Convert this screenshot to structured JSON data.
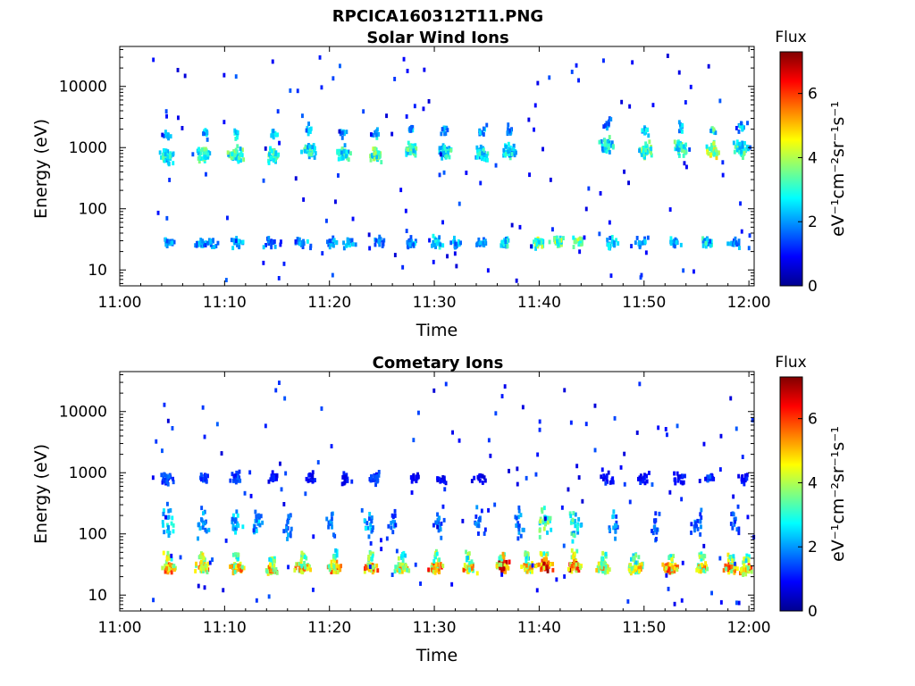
{
  "figure": {
    "filename": "RPCICA160312T11.PNG",
    "colors": {
      "background": "#ffffff",
      "axis": "#000000"
    }
  },
  "chart_data": [
    {
      "type": "heatmap",
      "title": "Solar Wind Ions",
      "xlabel": "Time",
      "ylabel": "Energy (eV)",
      "xticks": [
        "11:00",
        "11:10",
        "11:20",
        "11:30",
        "11:40",
        "11:50",
        "12:00"
      ],
      "xlim_minutes": [
        0,
        60.5
      ],
      "yscale": "log",
      "ylim": [
        5.5,
        45000
      ],
      "yticks": [
        10,
        100,
        1000,
        10000
      ],
      "ytick_labels": [
        "10",
        "100",
        "1000",
        "10000"
      ],
      "colorbar": {
        "title": "Flux",
        "unit": "eV⁻¹cm⁻²sr⁻¹s⁻¹",
        "range": [
          0,
          7.3
        ],
        "ticks": [
          0,
          2,
          4,
          6
        ],
        "colormap": "jet"
      },
      "bursts": [
        {
          "t": 4.4,
          "e": 700,
          "v": 3.2
        },
        {
          "t": 8.0,
          "e": 750,
          "v": 3.6
        },
        {
          "t": 11.0,
          "e": 780,
          "v": 3.8
        },
        {
          "t": 14.6,
          "e": 760,
          "v": 3.5
        },
        {
          "t": 18.0,
          "e": 900,
          "v": 3.4
        },
        {
          "t": 21.2,
          "e": 800,
          "v": 3.3
        },
        {
          "t": 24.2,
          "e": 780,
          "v": 3.9
        },
        {
          "t": 27.6,
          "e": 900,
          "v": 3.6
        },
        {
          "t": 30.8,
          "e": 850,
          "v": 3.3
        },
        {
          "t": 34.4,
          "e": 800,
          "v": 3.1
        },
        {
          "t": 37.0,
          "e": 850,
          "v": 3.0
        },
        {
          "t": 46.4,
          "e": 1100,
          "v": 3.2
        },
        {
          "t": 50.0,
          "e": 900,
          "v": 3.8
        },
        {
          "t": 53.4,
          "e": 1000,
          "v": 3.5
        },
        {
          "t": 56.4,
          "e": 900,
          "v": 4.6
        },
        {
          "t": 59.2,
          "e": 950,
          "v": 3.6
        }
      ],
      "low_band": {
        "e": 28,
        "v": 2.8,
        "times": [
          4.6,
          7.6,
          8.6,
          11.0,
          14.2,
          17.2,
          20.0,
          21.8,
          24.6,
          27.8,
          30.2,
          32.0,
          34.4,
          36.6,
          39.8,
          41.6,
          43.6,
          46.8,
          49.6,
          52.8,
          55.8,
          58.6
        ],
        "strength": [
          0.9,
          0.9,
          0.8,
          0.9,
          0.8,
          0.9,
          0.8,
          0.9,
          0.8,
          0.9,
          1.0,
          0.9,
          0.8,
          1.1,
          1.5,
          1.5,
          1.4,
          1.0,
          0.9,
          0.9,
          1.1,
          0.8
        ]
      }
    },
    {
      "type": "heatmap",
      "title": "Cometary Ions",
      "xlabel": "Time",
      "ylabel": "Energy (eV)",
      "xticks": [
        "11:00",
        "11:10",
        "11:20",
        "11:30",
        "11:40",
        "11:50",
        "12:00"
      ],
      "xlim_minutes": [
        0,
        60.5
      ],
      "yscale": "log",
      "ylim": [
        5.5,
        45000
      ],
      "yticks": [
        10,
        100,
        1000,
        10000
      ],
      "ytick_labels": [
        "10",
        "100",
        "1000",
        "10000"
      ],
      "colorbar": {
        "title": "Flux",
        "unit": "eV⁻¹cm⁻²sr⁻¹s⁻¹",
        "range": [
          0,
          7.3
        ],
        "ticks": [
          0,
          2,
          4,
          6
        ],
        "colormap": "jet"
      },
      "bursts": [
        {
          "t": 4.5,
          "e": 28,
          "v": 6.1
        },
        {
          "t": 7.8,
          "e": 28,
          "v": 5.9
        },
        {
          "t": 11.0,
          "e": 28,
          "v": 5.4
        },
        {
          "t": 14.4,
          "e": 26,
          "v": 5.6
        },
        {
          "t": 17.4,
          "e": 28,
          "v": 5.3
        },
        {
          "t": 20.4,
          "e": 28,
          "v": 5.6
        },
        {
          "t": 23.8,
          "e": 28,
          "v": 5.8
        },
        {
          "t": 26.8,
          "e": 28,
          "v": 5.4
        },
        {
          "t": 30.0,
          "e": 28,
          "v": 6.0
        },
        {
          "t": 33.2,
          "e": 28,
          "v": 5.5
        },
        {
          "t": 36.4,
          "e": 30,
          "v": 6.4
        },
        {
          "t": 38.8,
          "e": 28,
          "v": 5.2
        },
        {
          "t": 40.4,
          "e": 30,
          "v": 6.6
        },
        {
          "t": 43.2,
          "e": 30,
          "v": 6.7
        },
        {
          "t": 46.0,
          "e": 28,
          "v": 5.4
        },
        {
          "t": 49.0,
          "e": 28,
          "v": 5.0
        },
        {
          "t": 52.4,
          "e": 28,
          "v": 5.8
        },
        {
          "t": 55.4,
          "e": 28,
          "v": 5.4
        },
        {
          "t": 58.2,
          "e": 28,
          "v": 5.9
        },
        {
          "t": 59.6,
          "e": 26,
          "v": 5.8
        }
      ],
      "high_band": {
        "e": 800,
        "v": 1.5,
        "times": [
          4.4,
          8.0,
          11.0,
          14.6,
          18.0,
          21.4,
          24.2,
          28.0,
          30.6,
          34.2,
          46.4,
          50.0,
          53.2,
          56.2,
          59.4
        ],
        "strength": [
          1.2,
          1.0,
          1.0,
          0.8,
          0.7,
          0.8,
          1.1,
          0.7,
          0.7,
          0.6,
          0.8,
          0.8,
          0.8,
          1.0,
          0.8
        ]
      },
      "mid_band": {
        "e": 150,
        "v": 2.8,
        "times": [
          4.5,
          7.8,
          11.0,
          13.0,
          16.0,
          20.0,
          23.6,
          26.0,
          30.5,
          34.0,
          38.0,
          40.4,
          43.4,
          47.0,
          51.0,
          55.0,
          58.5
        ],
        "strength": [
          1.0,
          0.9,
          0.9,
          0.9,
          0.8,
          0.7,
          0.9,
          0.7,
          0.7,
          0.7,
          0.8,
          1.4,
          1.2,
          0.8,
          0.7,
          0.7,
          0.7
        ]
      }
    }
  ]
}
